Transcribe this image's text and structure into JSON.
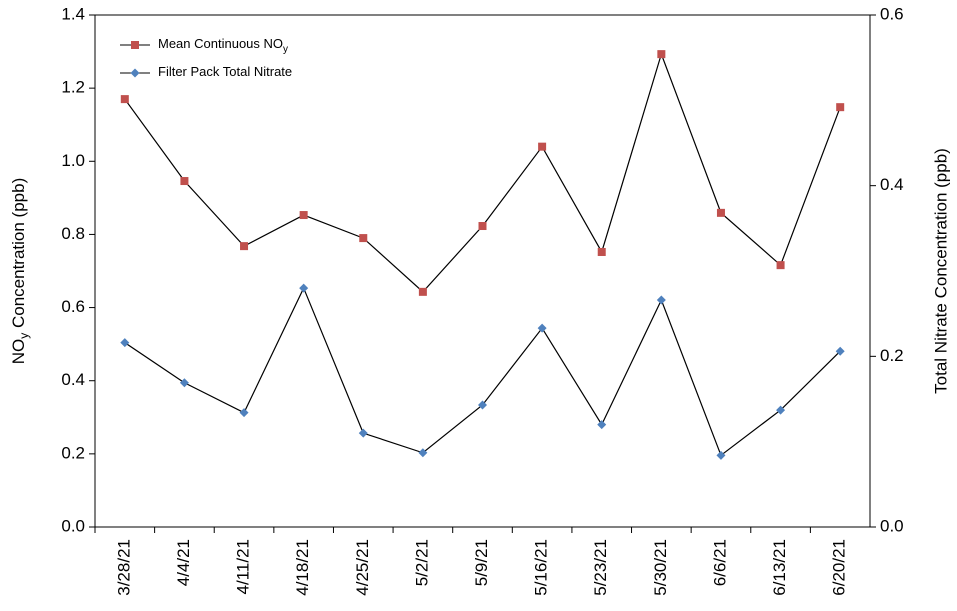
{
  "chart_data": {
    "type": "line",
    "y_label": {
      "main": "NO",
      "subscript": "y",
      "rest": " Concentration (ppb)"
    },
    "y2_label": "Total Nitrate Concentration (ppb)",
    "categories": [
      "3/28/21",
      "4/4/21",
      "4/11/21",
      "4/18/21",
      "4/25/21",
      "5/2/21",
      "5/9/21",
      "5/16/21",
      "5/23/21",
      "5/30/21",
      "6/6/21",
      "6/13/21",
      "6/20/21"
    ],
    "series": [
      {
        "name": "Mean Continuous NO",
        "name_subscript": "y",
        "color": "#c0504d",
        "marker": "square",
        "values": [
          1.17,
          0.946,
          0.768,
          0.853,
          0.79,
          0.643,
          0.823,
          1.04,
          0.752,
          1.293,
          0.859,
          0.716,
          1.148
        ]
      },
      {
        "name": "Filter Pack Total Nitrate",
        "color": "#4f81bd",
        "marker": "diamond",
        "axis": "y2",
        "values": [
          0.216,
          0.169,
          0.134,
          0.28,
          0.11,
          0.087,
          0.143,
          0.233,
          0.12,
          0.266,
          0.084,
          0.137,
          0.206
        ]
      }
    ],
    "ylim": [
      0,
      1.4
    ],
    "yticks": [
      {
        "value": 0,
        "label": "0.0"
      },
      0.2,
      0.4,
      0.6,
      0.8,
      {
        "value": 1,
        "label": "1.0"
      },
      1.2,
      1.4
    ],
    "y2lim": [
      0,
      0.6
    ],
    "y2ticks": [
      {
        "value": 0,
        "label": "0.0"
      },
      0.2,
      0.4,
      0.6
    ],
    "legend": "upper-left"
  }
}
